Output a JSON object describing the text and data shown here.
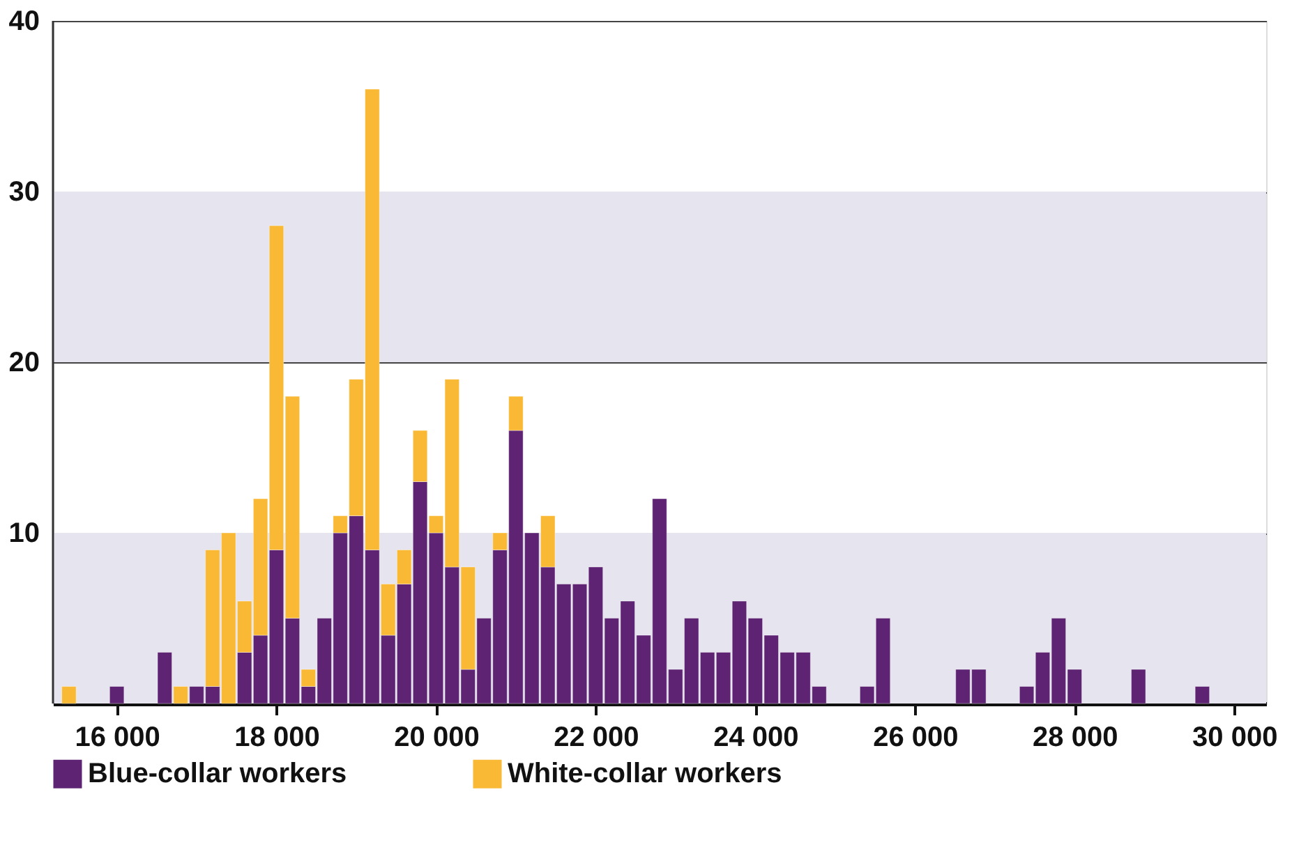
{
  "chart_data": {
    "type": "bar",
    "stacked": true,
    "x": [
      15400,
      16000,
      16600,
      16800,
      17000,
      17200,
      17400,
      17600,
      17800,
      18000,
      18200,
      18400,
      18600,
      18800,
      19000,
      19200,
      19400,
      19600,
      19800,
      20000,
      20200,
      20400,
      20600,
      20800,
      21000,
      21200,
      21400,
      21600,
      21800,
      22000,
      22200,
      22400,
      22600,
      22800,
      23000,
      23200,
      23400,
      23600,
      23800,
      24000,
      24200,
      24400,
      24600,
      24800,
      25400,
      25600,
      26600,
      26800,
      27400,
      27600,
      27800,
      28000,
      28800,
      29600
    ],
    "series": [
      {
        "name": "Blue-collar workers",
        "color": "#5e2473",
        "values": [
          null,
          1,
          3,
          null,
          1,
          1,
          null,
          3,
          4,
          9,
          5,
          1,
          5,
          10,
          11,
          9,
          4,
          7,
          13,
          10,
          8,
          2,
          5,
          9,
          16,
          10,
          8,
          7,
          7,
          8,
          5,
          6,
          4,
          12,
          2,
          5,
          3,
          3,
          6,
          5,
          4,
          3,
          3,
          1,
          1,
          5,
          2,
          2,
          1,
          3,
          5,
          2,
          2,
          1
        ]
      },
      {
        "name": "White-collar workers",
        "color": "#f9b935",
        "values": [
          1,
          null,
          null,
          1,
          null,
          8,
          10,
          3,
          8,
          19,
          13,
          1,
          null,
          1,
          8,
          27,
          3,
          2,
          3,
          1,
          11,
          6,
          null,
          1,
          2,
          null,
          3,
          null,
          null,
          null,
          null,
          null,
          null,
          null,
          null,
          null,
          null,
          null,
          null,
          null,
          null,
          null,
          null,
          null,
          null,
          null,
          null,
          null,
          null,
          null,
          null,
          null,
          null,
          null
        ]
      }
    ],
    "xlim": [
      15200,
      30400
    ],
    "xticks": [
      {
        "value": 16000,
        "label": "16 000"
      },
      {
        "value": 18000,
        "label": "18 000"
      },
      {
        "value": 20000,
        "label": "20 000"
      },
      {
        "value": 22000,
        "label": "22 000"
      },
      {
        "value": 24000,
        "label": "24 000"
      },
      {
        "value": 26000,
        "label": "26 000"
      },
      {
        "value": 28000,
        "label": "28 000"
      },
      {
        "value": 30000,
        "label": "30 000"
      }
    ],
    "ylim": [
      0,
      40
    ],
    "yticks": [
      10,
      20,
      30,
      40
    ],
    "grid": "y",
    "bands": [
      {
        "axis": "y",
        "from": 0,
        "to": 10,
        "color": "#e6e5ef"
      },
      {
        "axis": "y",
        "from": 20,
        "to": 30,
        "color": "#e6e5ef"
      }
    ],
    "legend": "bottom"
  }
}
